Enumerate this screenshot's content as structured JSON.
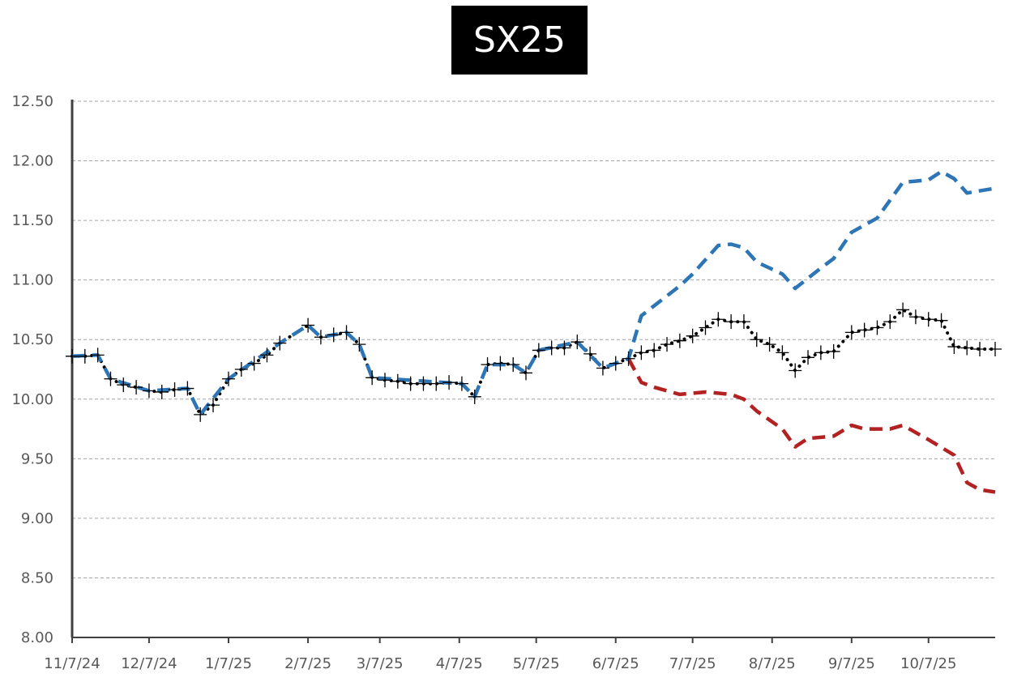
{
  "chart_data": {
    "type": "line",
    "title": "SX25",
    "xlabel": "",
    "ylabel": "",
    "ylim": [
      8.0,
      12.5
    ],
    "y_ticks": [
      "12.50",
      "12.00",
      "11.50",
      "11.00",
      "10.50",
      "10.00",
      "9.50",
      "9.00",
      "8.50",
      "8.00"
    ],
    "y_tick_values": [
      12.5,
      12.0,
      11.5,
      11.0,
      10.5,
      10.0,
      9.5,
      9.0,
      8.5,
      8.0
    ],
    "x_ticks": [
      "11/7/24",
      "12/7/24",
      "1/7/25",
      "2/7/25",
      "3/7/25",
      "4/7/25",
      "5/7/25",
      "6/7/25",
      "7/7/25",
      "8/7/25",
      "9/7/25",
      "10/7/25"
    ],
    "xlim": [
      "2024-11-07",
      "2025-11-02"
    ],
    "grid": true,
    "legend": "none",
    "series": [
      {
        "style": "dotted-with-plus-markers",
        "color": "#000000",
        "points": [
          [
            "2024-11-07",
            10.36
          ],
          [
            "2024-11-12",
            10.36
          ],
          [
            "2024-11-17",
            10.37
          ],
          [
            "2024-11-22",
            10.17
          ],
          [
            "2024-11-27",
            10.12
          ],
          [
            "2024-12-02",
            10.1
          ],
          [
            "2024-12-07",
            10.07
          ],
          [
            "2024-12-12",
            10.06
          ],
          [
            "2024-12-17",
            10.08
          ],
          [
            "2024-12-22",
            10.09
          ],
          [
            "2024-12-27",
            9.87
          ],
          [
            "2025-01-01",
            9.95
          ],
          [
            "2025-01-07",
            10.17
          ],
          [
            "2025-01-12",
            10.25
          ],
          [
            "2025-01-17",
            10.3
          ],
          [
            "2025-01-22",
            10.37
          ],
          [
            "2025-01-27",
            10.47
          ],
          [
            "2025-02-07",
            10.62
          ],
          [
            "2025-02-12",
            10.52
          ],
          [
            "2025-02-17",
            10.54
          ],
          [
            "2025-02-22",
            10.56
          ],
          [
            "2025-02-27",
            10.46
          ],
          [
            "2025-03-04",
            10.18
          ],
          [
            "2025-03-09",
            10.16
          ],
          [
            "2025-03-14",
            10.15
          ],
          [
            "2025-03-19",
            10.13
          ],
          [
            "2025-03-24",
            10.13
          ],
          [
            "2025-03-29",
            10.13
          ],
          [
            "2025-04-03",
            10.14
          ],
          [
            "2025-04-08",
            10.13
          ],
          [
            "2025-04-13",
            10.02
          ],
          [
            "2025-04-18",
            10.29
          ],
          [
            "2025-04-23",
            10.3
          ],
          [
            "2025-04-28",
            10.29
          ],
          [
            "2025-05-03",
            10.22
          ],
          [
            "2025-05-08",
            10.41
          ],
          [
            "2025-05-13",
            10.43
          ],
          [
            "2025-05-18",
            10.43
          ],
          [
            "2025-05-23",
            10.48
          ],
          [
            "2025-05-28",
            10.38
          ],
          [
            "2025-06-02",
            10.26
          ],
          [
            "2025-06-07",
            10.3
          ],
          [
            "2025-06-12",
            10.34
          ],
          [
            "2025-06-17",
            10.39
          ],
          [
            "2025-06-22",
            10.41
          ],
          [
            "2025-06-27",
            10.46
          ],
          [
            "2025-07-02",
            10.49
          ],
          [
            "2025-07-07",
            10.53
          ],
          [
            "2025-07-12",
            10.6
          ],
          [
            "2025-07-17",
            10.67
          ],
          [
            "2025-07-22",
            10.65
          ],
          [
            "2025-07-27",
            10.65
          ],
          [
            "2025-08-01",
            10.5
          ],
          [
            "2025-08-06",
            10.46
          ],
          [
            "2025-08-11",
            10.39
          ],
          [
            "2025-08-16",
            10.24
          ],
          [
            "2025-08-21",
            10.35
          ],
          [
            "2025-08-26",
            10.39
          ],
          [
            "2025-08-31",
            10.4
          ],
          [
            "2025-09-07",
            10.56
          ],
          [
            "2025-09-12",
            10.58
          ],
          [
            "2025-09-17",
            10.6
          ],
          [
            "2025-09-22",
            10.65
          ],
          [
            "2025-09-27",
            10.75
          ],
          [
            "2025-10-02",
            10.69
          ],
          [
            "2025-10-07",
            10.67
          ],
          [
            "2025-10-12",
            10.66
          ],
          [
            "2025-10-17",
            10.44
          ],
          [
            "2025-10-22",
            10.43
          ],
          [
            "2025-10-27",
            10.42
          ],
          [
            "2025-11-02",
            10.42
          ]
        ]
      },
      {
        "style": "dashed",
        "color": "#2e75b6",
        "points": [
          [
            "2024-11-07",
            10.36
          ],
          [
            "2024-11-17",
            10.37
          ],
          [
            "2024-11-22",
            10.17
          ],
          [
            "2024-12-07",
            10.07
          ],
          [
            "2024-12-22",
            10.09
          ],
          [
            "2024-12-27",
            9.87
          ],
          [
            "2025-01-07",
            10.17
          ],
          [
            "2025-01-27",
            10.47
          ],
          [
            "2025-02-07",
            10.62
          ],
          [
            "2025-02-12",
            10.52
          ],
          [
            "2025-02-22",
            10.56
          ],
          [
            "2025-02-27",
            10.46
          ],
          [
            "2025-03-04",
            10.18
          ],
          [
            "2025-04-08",
            10.13
          ],
          [
            "2025-04-13",
            10.02
          ],
          [
            "2025-04-18",
            10.29
          ],
          [
            "2025-04-28",
            10.29
          ],
          [
            "2025-05-03",
            10.22
          ],
          [
            "2025-05-08",
            10.41
          ],
          [
            "2025-05-23",
            10.48
          ],
          [
            "2025-06-02",
            10.26
          ],
          [
            "2025-06-12",
            10.34
          ],
          [
            "2025-06-17",
            10.7
          ],
          [
            "2025-07-02",
            10.95
          ],
          [
            "2025-07-07",
            11.05
          ],
          [
            "2025-07-17",
            11.29
          ],
          [
            "2025-07-22",
            11.3
          ],
          [
            "2025-07-27",
            11.27
          ],
          [
            "2025-08-01",
            11.15
          ],
          [
            "2025-08-11",
            11.05
          ],
          [
            "2025-08-16",
            10.93
          ],
          [
            "2025-08-26",
            11.1
          ],
          [
            "2025-08-31",
            11.18
          ],
          [
            "2025-09-07",
            11.4
          ],
          [
            "2025-09-17",
            11.52
          ],
          [
            "2025-09-27",
            11.82
          ],
          [
            "2025-10-02",
            11.83
          ],
          [
            "2025-10-07",
            11.84
          ],
          [
            "2025-10-12",
            11.91
          ],
          [
            "2025-10-17",
            11.85
          ],
          [
            "2025-10-22",
            11.73
          ],
          [
            "2025-11-02",
            11.77
          ]
        ]
      },
      {
        "style": "dashed",
        "color": "#b22222",
        "points": [
          [
            "2025-06-12",
            10.34
          ],
          [
            "2025-06-17",
            10.14
          ],
          [
            "2025-06-22",
            10.1
          ],
          [
            "2025-06-27",
            10.07
          ],
          [
            "2025-07-02",
            10.04
          ],
          [
            "2025-07-12",
            10.06
          ],
          [
            "2025-07-22",
            10.04
          ],
          [
            "2025-07-27",
            10.0
          ],
          [
            "2025-08-01",
            9.9
          ],
          [
            "2025-08-11",
            9.75
          ],
          [
            "2025-08-16",
            9.6
          ],
          [
            "2025-08-21",
            9.67
          ],
          [
            "2025-08-31",
            9.69
          ],
          [
            "2025-09-07",
            9.78
          ],
          [
            "2025-09-12",
            9.75
          ],
          [
            "2025-09-22",
            9.75
          ],
          [
            "2025-09-27",
            9.78
          ],
          [
            "2025-10-07",
            9.66
          ],
          [
            "2025-10-17",
            9.53
          ],
          [
            "2025-10-22",
            9.3
          ],
          [
            "2025-10-27",
            9.24
          ],
          [
            "2025-11-02",
            9.22
          ]
        ]
      }
    ]
  }
}
